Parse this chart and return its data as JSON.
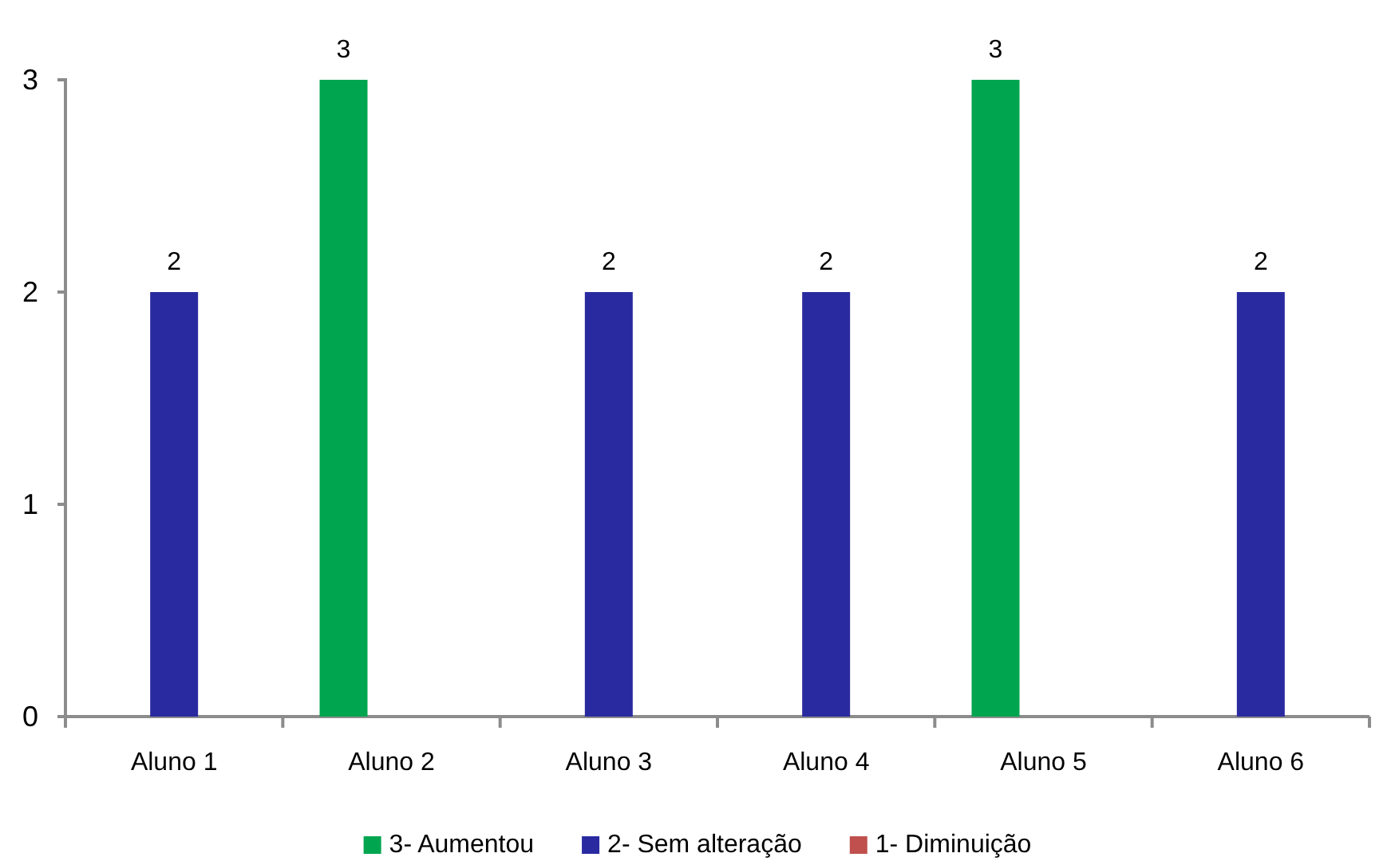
{
  "chart_data": {
    "type": "bar",
    "categories": [
      "Aluno 1",
      "Aluno 2",
      "Aluno 3",
      "Aluno 4",
      "Aluno 5",
      "Aluno 6"
    ],
    "series": [
      {
        "name": "3- Aumentou",
        "color": "#00a54f",
        "values": [
          null,
          3,
          null,
          null,
          3,
          null
        ]
      },
      {
        "name": "2- Sem alteração",
        "color": "#2a2aa0",
        "values": [
          2,
          null,
          2,
          2,
          null,
          2
        ]
      },
      {
        "name": "1- Diminuição",
        "color": "#c0504d",
        "values": [
          null,
          null,
          null,
          null,
          null,
          null
        ]
      }
    ],
    "ylim": [
      0,
      3
    ],
    "yticks": [
      0,
      1,
      2,
      3
    ],
    "data_labels": true,
    "legend": "bottom"
  }
}
